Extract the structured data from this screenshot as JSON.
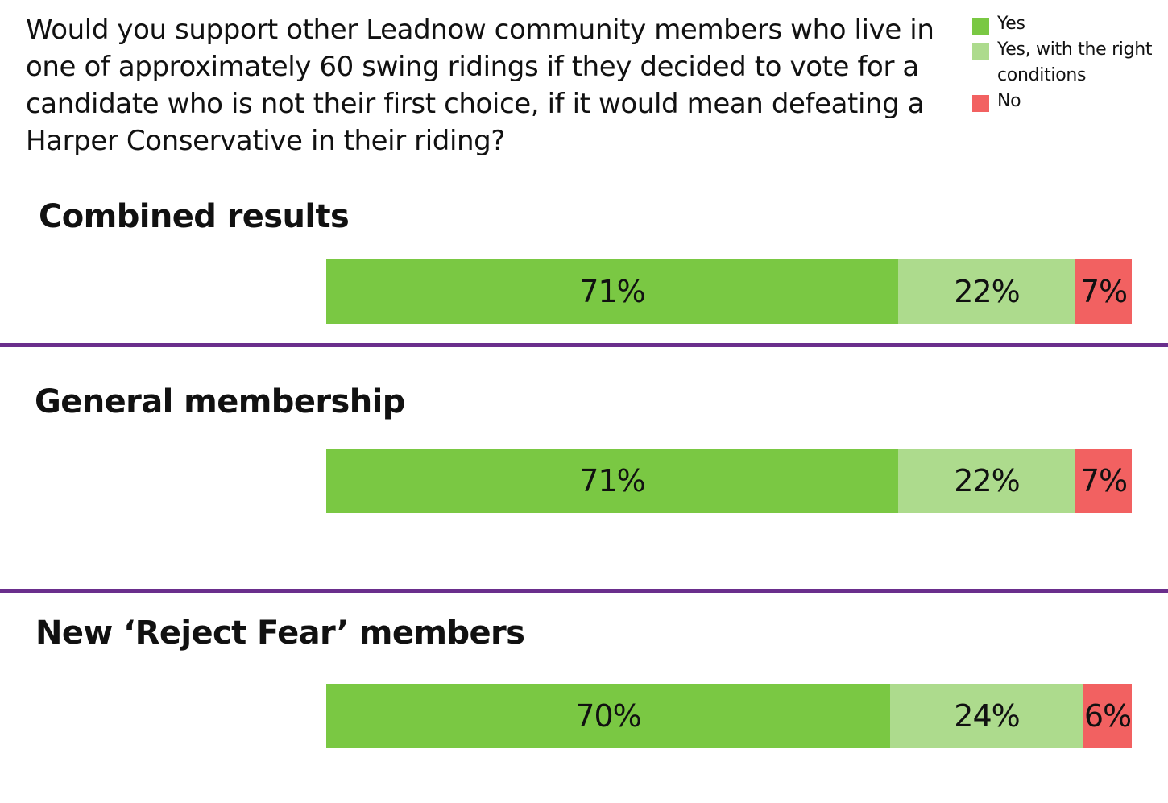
{
  "question": "Would you support other Leadnow community members who live in one of approximately 60 swing ridings if they decided to vote for a candidate who is not their first choice, if it would mean defeating a Harper Conservative in their riding?",
  "legend": [
    {
      "label": "Yes",
      "color": "#7ac843"
    },
    {
      "label": "Yes, with the right conditions",
      "color": "#addb8d"
    },
    {
      "label": "No",
      "color": "#f26161"
    }
  ],
  "chart_data": [
    {
      "type": "bar",
      "stacked": true,
      "orientation": "horizontal",
      "title": "Combined results",
      "series": [
        {
          "name": "Yes",
          "values": [
            71
          ],
          "label": "71%"
        },
        {
          "name": "Yes, with the right conditions",
          "values": [
            22
          ],
          "label": "22%"
        },
        {
          "name": "No",
          "values": [
            7
          ],
          "label": "7%"
        }
      ],
      "xlim": [
        0,
        100
      ]
    },
    {
      "type": "bar",
      "stacked": true,
      "orientation": "horizontal",
      "title": "General membership",
      "series": [
        {
          "name": "Yes",
          "values": [
            71
          ],
          "label": "71%"
        },
        {
          "name": "Yes, with the right conditions",
          "values": [
            22
          ],
          "label": "22%"
        },
        {
          "name": "No",
          "values": [
            7
          ],
          "label": "7%"
        }
      ],
      "xlim": [
        0,
        100
      ]
    },
    {
      "type": "bar",
      "stacked": true,
      "orientation": "horizontal",
      "title": "New ‘Reject Fear’ members",
      "series": [
        {
          "name": "Yes",
          "values": [
            70
          ],
          "label": "70%"
        },
        {
          "name": "Yes, with the right conditions",
          "values": [
            24
          ],
          "label": "24%"
        },
        {
          "name": "No",
          "values": [
            6
          ],
          "label": "6%"
        }
      ],
      "xlim": [
        0,
        100
      ]
    }
  ]
}
